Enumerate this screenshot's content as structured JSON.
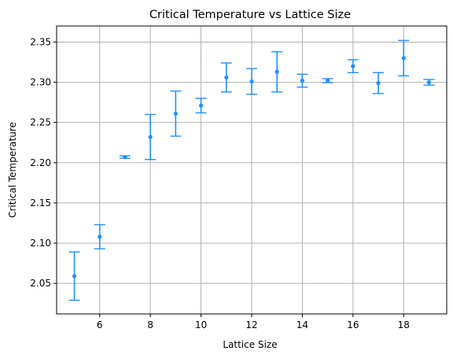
{
  "chart_data": {
    "type": "scatter",
    "title": "Critical Temperature vs Lattice Size",
    "xlabel": "Lattice Size",
    "ylabel": "Critical Temperature",
    "xlim": [
      4.3,
      19.7
    ],
    "ylim": [
      2.012,
      2.37
    ],
    "xticks": [
      6,
      8,
      10,
      12,
      14,
      16,
      18
    ],
    "yticks": [
      2.05,
      2.1,
      2.15,
      2.2,
      2.25,
      2.3,
      2.35
    ],
    "ytick_labels": [
      "2.05",
      "2.10",
      "2.15",
      "2.20",
      "2.25",
      "2.30",
      "2.35"
    ],
    "grid": true,
    "color": "#1e90ff",
    "points": [
      {
        "x": 5,
        "y": 2.059,
        "err": 0.03
      },
      {
        "x": 6,
        "y": 2.108,
        "err": 0.015
      },
      {
        "x": 7,
        "y": 2.207,
        "err": 0.0015
      },
      {
        "x": 8,
        "y": 2.232,
        "err": 0.028
      },
      {
        "x": 9,
        "y": 2.261,
        "err": 0.028
      },
      {
        "x": 10,
        "y": 2.271,
        "err": 0.009
      },
      {
        "x": 11,
        "y": 2.306,
        "err": 0.018
      },
      {
        "x": 12,
        "y": 2.301,
        "err": 0.016
      },
      {
        "x": 13,
        "y": 2.313,
        "err": 0.025
      },
      {
        "x": 14,
        "y": 2.302,
        "err": 0.008
      },
      {
        "x": 15,
        "y": 2.302,
        "err": 0.0025
      },
      {
        "x": 16,
        "y": 2.32,
        "err": 0.008
      },
      {
        "x": 17,
        "y": 2.299,
        "err": 0.013
      },
      {
        "x": 18,
        "y": 2.33,
        "err": 0.022
      },
      {
        "x": 19,
        "y": 2.3,
        "err": 0.0035
      }
    ]
  }
}
